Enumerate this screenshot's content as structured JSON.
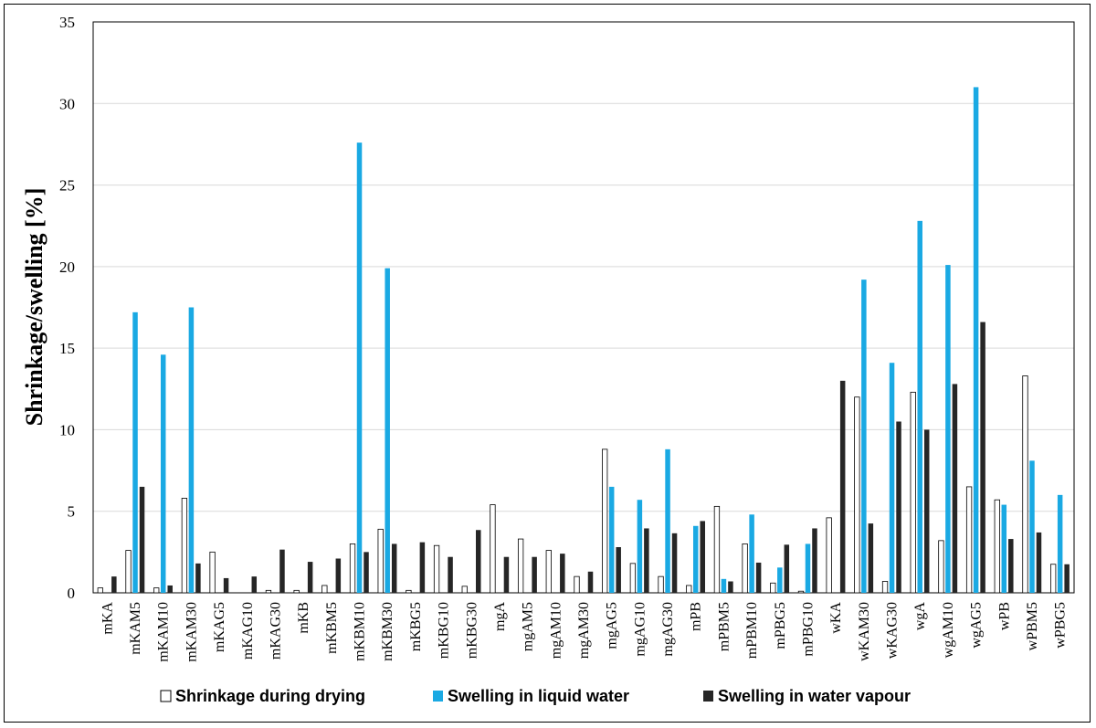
{
  "chart_data": {
    "type": "bar",
    "ylabel": "Shrinkage/swelling [%]",
    "xlabel": "",
    "ylim": [
      0,
      35
    ],
    "yticks": [
      0,
      5,
      10,
      15,
      20,
      25,
      30,
      35
    ],
    "grid": true,
    "legend_position": "bottom",
    "categories": [
      "mKA",
      "mKAM5",
      "mKAM10",
      "mKAM30",
      "mKAG5",
      "mKAG10",
      "mKAG30",
      "mKB",
      "mKBM5",
      "mKBM10",
      "mKBM30",
      "mKBG5",
      "mKBG10",
      "mKBG30",
      "mgA",
      "mgAM5",
      "mgAM10",
      "mgAM30",
      "mgAG5",
      "mgAG10",
      "mgAG30",
      "mPB",
      "mPBM5",
      "mPBM10",
      "mPBG5",
      "mPBG10",
      "wKA",
      "wKAM30",
      "wKAG30",
      "wgA",
      "wgAM10",
      "wgAG5",
      "wPB",
      "wPBM5",
      "wPBG5"
    ],
    "series": [
      {
        "name": "Shrinkage during drying",
        "color": "#ffffff",
        "values": [
          0.3,
          2.6,
          0.3,
          5.8,
          2.5,
          0,
          0.15,
          0.15,
          0.45,
          3.0,
          3.9,
          0.15,
          2.9,
          0.4,
          5.4,
          3.3,
          2.6,
          1.0,
          8.8,
          1.8,
          1.0,
          0.45,
          5.3,
          3.0,
          0.6,
          0.1,
          4.6,
          12.0,
          0.7,
          12.3,
          3.2,
          6.5,
          5.7,
          13.3,
          1.75
        ]
      },
      {
        "name": "Swelling in liquid water",
        "color": "#1aa9e3",
        "values": [
          0,
          17.2,
          14.6,
          17.5,
          0,
          0,
          0,
          0,
          0,
          27.6,
          19.9,
          0,
          0,
          0,
          0,
          0,
          0,
          0,
          6.5,
          5.7,
          8.8,
          4.1,
          0.85,
          4.8,
          1.55,
          3.0,
          0,
          19.2,
          14.1,
          22.8,
          20.1,
          31.0,
          5.4,
          8.1,
          6.0
        ]
      },
      {
        "name": "Swelling in water vapour",
        "color": "#262626",
        "values": [
          1.0,
          6.5,
          0.45,
          1.8,
          0.9,
          1.0,
          2.65,
          1.9,
          2.1,
          2.5,
          3.0,
          3.1,
          2.2,
          3.85,
          2.2,
          2.2,
          2.4,
          1.3,
          2.8,
          3.95,
          3.65,
          4.4,
          0.7,
          1.85,
          2.95,
          3.95,
          13.0,
          4.25,
          10.5,
          10.0,
          12.8,
          16.6,
          3.3,
          3.7,
          1.75
        ]
      }
    ]
  }
}
